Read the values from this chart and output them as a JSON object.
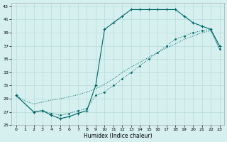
{
  "xlabel": "Humidex (Indice chaleur)",
  "bg_color": "#d6f0f0",
  "grid_color": "#b8dada",
  "line_color": "#006666",
  "xlim": [
    -0.5,
    23.5
  ],
  "ylim": [
    25,
    43.5
  ],
  "xticks": [
    0,
    1,
    2,
    3,
    4,
    5,
    6,
    7,
    8,
    9,
    10,
    11,
    12,
    13,
    14,
    15,
    16,
    17,
    18,
    19,
    20,
    21,
    22,
    23
  ],
  "yticks": [
    25,
    27,
    29,
    31,
    33,
    35,
    37,
    39,
    41,
    43
  ],
  "line1_x": [
    0,
    1,
    2,
    3,
    4,
    5,
    6,
    7,
    8,
    9,
    10,
    11,
    12,
    13,
    14,
    15,
    16,
    17,
    18,
    19,
    20,
    21,
    22,
    23
  ],
  "line1_y": [
    29.5,
    28.7,
    28.2,
    28.5,
    28.8,
    29.0,
    29.3,
    29.6,
    30.0,
    30.5,
    31.2,
    32.0,
    33.0,
    33.8,
    34.5,
    35.3,
    36.0,
    36.7,
    37.3,
    38.0,
    38.5,
    39.0,
    39.3,
    36.5
  ],
  "line2_x": [
    0,
    2,
    3,
    4,
    5,
    6,
    7,
    8,
    9,
    10,
    11,
    12,
    13,
    14,
    15,
    16,
    17,
    18,
    19,
    20,
    21,
    22,
    23
  ],
  "line2_y": [
    29.5,
    27.0,
    27.2,
    26.8,
    26.5,
    26.8,
    27.2,
    27.5,
    29.5,
    30.0,
    31.0,
    32.0,
    33.0,
    34.0,
    35.0,
    36.0,
    37.0,
    38.0,
    38.5,
    39.0,
    39.3,
    39.5,
    36.5
  ],
  "line3_x": [
    0,
    2,
    3,
    4,
    5,
    6,
    7,
    8,
    9,
    10,
    11,
    12,
    13,
    14,
    15,
    16,
    17,
    18,
    19,
    20,
    21,
    22,
    23
  ],
  "line3_y": [
    29.5,
    27.0,
    27.2,
    26.5,
    26.0,
    26.3,
    26.8,
    27.2,
    31.0,
    39.5,
    40.5,
    41.5,
    42.5,
    42.5,
    42.5,
    42.5,
    42.5,
    42.5,
    41.5,
    40.5,
    40.0,
    39.5,
    37.0
  ]
}
